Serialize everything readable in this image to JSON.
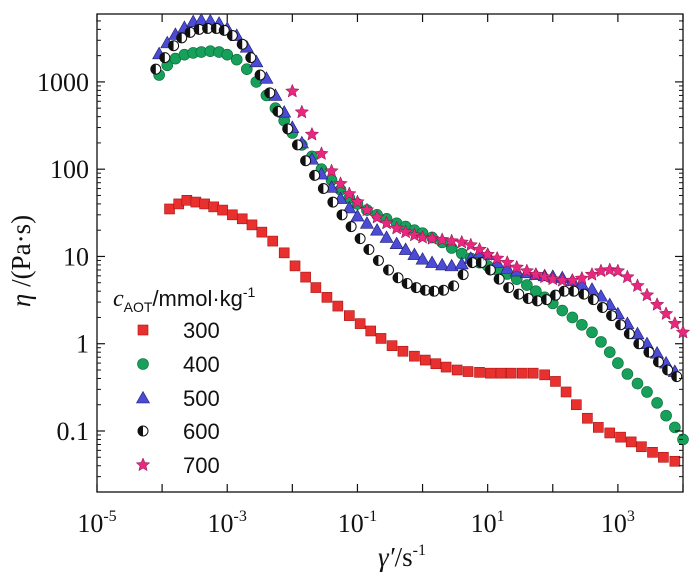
{
  "chart_data": {
    "type": "scatter",
    "xlabel": {
      "symbol": "γ′",
      "unit": "/s",
      "exp": "-1"
    },
    "ylabel": {
      "symbol": "η",
      "unit": " /(Pa·s)"
    },
    "x_scale": "log",
    "y_scale": "log",
    "xlim": [
      1e-05,
      10000
    ],
    "ylim": [
      0.02,
      6000
    ],
    "x_ticks": [
      {
        "value": 1e-05,
        "base": "10",
        "exp": "-5"
      },
      {
        "value": 0.001,
        "base": "10",
        "exp": "-3"
      },
      {
        "value": 0.1,
        "base": "10",
        "exp": "-1"
      },
      {
        "value": 10,
        "base": "10",
        "exp": "1"
      },
      {
        "value": 1000,
        "base": "10",
        "exp": "3"
      }
    ],
    "y_ticks": [
      {
        "value": 0.1,
        "label": "0.1"
      },
      {
        "value": 1,
        "label": "1"
      },
      {
        "value": 10,
        "label": "10"
      },
      {
        "value": 100,
        "label": "100"
      },
      {
        "value": 1000,
        "label": "1000"
      }
    ],
    "grid": false,
    "legend": {
      "position": "left",
      "title": {
        "symbol": "c",
        "sub": "AOT",
        "unit": "/mmol·kg",
        "exp": "-1"
      },
      "entries": [
        "300",
        "400",
        "500",
        "600",
        "700"
      ]
    },
    "series": [
      {
        "name": "300",
        "marker": "square",
        "color": "#e8302e",
        "points": [
          [
            0.00013,
            35
          ],
          [
            0.00018,
            40
          ],
          [
            0.00024,
            44
          ],
          [
            0.00033,
            42
          ],
          [
            0.00045,
            40
          ],
          [
            0.00062,
            37
          ],
          [
            0.00085,
            34
          ],
          [
            0.0012,
            30
          ],
          [
            0.0017,
            27
          ],
          [
            0.0024,
            23
          ],
          [
            0.0034,
            19
          ],
          [
            0.005,
            15
          ],
          [
            0.0075,
            11
          ],
          [
            0.011,
            7.8
          ],
          [
            0.016,
            5.8
          ],
          [
            0.023,
            4.4
          ],
          [
            0.034,
            3.4
          ],
          [
            0.05,
            2.7
          ],
          [
            0.075,
            2.1
          ],
          [
            0.11,
            1.7
          ],
          [
            0.16,
            1.4
          ],
          [
            0.23,
            1.15
          ],
          [
            0.34,
            0.95
          ],
          [
            0.5,
            0.82
          ],
          [
            0.75,
            0.72
          ],
          [
            1.1,
            0.65
          ],
          [
            1.6,
            0.59
          ],
          [
            2.3,
            0.54
          ],
          [
            3.4,
            0.5
          ],
          [
            5,
            0.48
          ],
          [
            7.5,
            0.47
          ],
          [
            11,
            0.46
          ],
          [
            16,
            0.46
          ],
          [
            23,
            0.46
          ],
          [
            34,
            0.46
          ],
          [
            50,
            0.46
          ],
          [
            75,
            0.44
          ],
          [
            110,
            0.37
          ],
          [
            160,
            0.28
          ],
          [
            230,
            0.2
          ],
          [
            340,
            0.14
          ],
          [
            500,
            0.11
          ],
          [
            750,
            0.095
          ],
          [
            1100,
            0.085
          ],
          [
            1600,
            0.075
          ],
          [
            2300,
            0.066
          ],
          [
            3400,
            0.057
          ],
          [
            5000,
            0.05
          ],
          [
            7500,
            0.045
          ],
          [
            11000,
            0.04
          ]
        ]
      },
      {
        "name": "400",
        "marker": "circle",
        "color": "#16a05a",
        "points": [
          [
            9e-05,
            1200
          ],
          [
            0.00012,
            1550
          ],
          [
            0.00016,
            1850
          ],
          [
            0.00022,
            2050
          ],
          [
            0.0003,
            2150
          ],
          [
            0.0004,
            2200
          ],
          [
            0.00055,
            2250
          ],
          [
            0.00075,
            2200
          ],
          [
            0.001,
            2050
          ],
          [
            0.0014,
            1800
          ],
          [
            0.002,
            1400
          ],
          [
            0.0028,
            1000
          ],
          [
            0.004,
            700
          ],
          [
            0.0055,
            500
          ],
          [
            0.0075,
            360
          ],
          [
            0.01,
            260
          ],
          [
            0.014,
            190
          ],
          [
            0.02,
            140
          ],
          [
            0.028,
            100
          ],
          [
            0.04,
            75
          ],
          [
            0.055,
            58
          ],
          [
            0.075,
            47
          ],
          [
            0.1,
            40
          ],
          [
            0.14,
            34
          ],
          [
            0.2,
            30
          ],
          [
            0.28,
            27
          ],
          [
            0.4,
            24
          ],
          [
            0.55,
            22
          ],
          [
            0.75,
            20
          ],
          [
            1,
            18.5
          ],
          [
            1.4,
            16.5
          ],
          [
            2,
            14.5
          ],
          [
            2.8,
            12.5
          ],
          [
            4,
            10.8
          ],
          [
            5.5,
            9.5
          ],
          [
            7.5,
            8.5
          ],
          [
            10,
            7.8
          ],
          [
            14,
            7
          ],
          [
            20,
            6.3
          ],
          [
            28,
            5.5
          ],
          [
            40,
            4.7
          ],
          [
            55,
            4
          ],
          [
            75,
            3.4
          ],
          [
            100,
            2.9
          ],
          [
            140,
            2.4
          ],
          [
            200,
            2
          ],
          [
            280,
            1.65
          ],
          [
            400,
            1.35
          ],
          [
            550,
            1.05
          ],
          [
            750,
            0.8
          ],
          [
            1000,
            0.6
          ],
          [
            1400,
            0.45
          ],
          [
            2000,
            0.35
          ],
          [
            2800,
            0.28
          ],
          [
            4000,
            0.21
          ],
          [
            5500,
            0.15
          ],
          [
            7500,
            0.11
          ],
          [
            10000,
            0.08
          ]
        ]
      },
      {
        "name": "500",
        "marker": "triangle",
        "color": "#4b4bd6",
        "points": [
          [
            9e-05,
            2100
          ],
          [
            0.00012,
            2800
          ],
          [
            0.00016,
            3500
          ],
          [
            0.00022,
            4200
          ],
          [
            0.0003,
            4900
          ],
          [
            0.0004,
            5100
          ],
          [
            0.00055,
            5000
          ],
          [
            0.00075,
            4700
          ],
          [
            0.001,
            4100
          ],
          [
            0.0014,
            3400
          ],
          [
            0.002,
            2500
          ],
          [
            0.0028,
            1700
          ],
          [
            0.004,
            1100
          ],
          [
            0.0055,
            700
          ],
          [
            0.0075,
            450
          ],
          [
            0.01,
            300
          ],
          [
            0.014,
            200
          ],
          [
            0.02,
            130
          ],
          [
            0.028,
            88
          ],
          [
            0.04,
            62
          ],
          [
            0.055,
            46
          ],
          [
            0.075,
            36
          ],
          [
            0.1,
            29
          ],
          [
            0.14,
            24
          ],
          [
            0.2,
            20
          ],
          [
            0.28,
            16.5
          ],
          [
            0.4,
            14
          ],
          [
            0.55,
            12
          ],
          [
            0.75,
            10.5
          ],
          [
            1,
            9.3
          ],
          [
            1.4,
            8.5
          ],
          [
            2,
            8
          ],
          [
            2.8,
            7.8
          ],
          [
            4,
            8.2
          ],
          [
            5.5,
            9.5
          ],
          [
            7.5,
            11
          ],
          [
            10,
            10.5
          ],
          [
            14,
            8.5
          ],
          [
            20,
            7.3
          ],
          [
            28,
            6.8
          ],
          [
            40,
            6.5
          ],
          [
            55,
            6.2
          ],
          [
            75,
            6
          ],
          [
            100,
            5.9
          ],
          [
            140,
            5.7
          ],
          [
            200,
            5.3
          ],
          [
            280,
            4.8
          ],
          [
            400,
            4.2
          ],
          [
            550,
            3.5
          ],
          [
            750,
            2.8
          ],
          [
            1000,
            2.2
          ],
          [
            1400,
            1.7
          ],
          [
            2000,
            1.3
          ],
          [
            2800,
            1
          ],
          [
            4000,
            0.78
          ],
          [
            5500,
            0.6
          ],
          [
            7500,
            0.48
          ]
        ]
      },
      {
        "name": "600",
        "marker": "halfcircle",
        "color": "#111111",
        "points": [
          [
            8e-05,
            1400
          ],
          [
            0.00011,
            1900
          ],
          [
            0.00015,
            2600
          ],
          [
            0.0002,
            3200
          ],
          [
            0.00027,
            3700
          ],
          [
            0.00037,
            4000
          ],
          [
            0.0005,
            4100
          ],
          [
            0.00068,
            4100
          ],
          [
            0.0009,
            3900
          ],
          [
            0.0012,
            3400
          ],
          [
            0.0017,
            2700
          ],
          [
            0.0023,
            1900
          ],
          [
            0.0032,
            1200
          ],
          [
            0.0045,
            750
          ],
          [
            0.006,
            460
          ],
          [
            0.0085,
            290
          ],
          [
            0.012,
            190
          ],
          [
            0.016,
            125
          ],
          [
            0.022,
            85
          ],
          [
            0.03,
            60
          ],
          [
            0.042,
            42
          ],
          [
            0.058,
            30
          ],
          [
            0.08,
            22
          ],
          [
            0.11,
            16
          ],
          [
            0.15,
            12
          ],
          [
            0.21,
            9
          ],
          [
            0.3,
            7
          ],
          [
            0.42,
            5.7
          ],
          [
            0.58,
            4.9
          ],
          [
            0.8,
            4.4
          ],
          [
            1.1,
            4.1
          ],
          [
            1.5,
            4
          ],
          [
            2.1,
            4.1
          ],
          [
            3,
            4.6
          ],
          [
            4.2,
            6.2
          ],
          [
            5.8,
            8.5
          ],
          [
            8,
            8.5
          ],
          [
            11,
            7
          ],
          [
            15,
            5.5
          ],
          [
            21,
            4.4
          ],
          [
            30,
            3.7
          ],
          [
            42,
            3.3
          ],
          [
            58,
            3.1
          ],
          [
            80,
            3.2
          ],
          [
            110,
            3.6
          ],
          [
            150,
            4
          ],
          [
            210,
            4
          ],
          [
            300,
            3.7
          ],
          [
            420,
            3.2
          ],
          [
            580,
            2.6
          ],
          [
            800,
            2.1
          ],
          [
            1100,
            1.65
          ],
          [
            1500,
            1.3
          ],
          [
            2100,
            1
          ],
          [
            3000,
            0.8
          ],
          [
            4200,
            0.62
          ],
          [
            5800,
            0.5
          ],
          [
            8000,
            0.42
          ]
        ]
      },
      {
        "name": "700",
        "marker": "star",
        "color": "#e8287e",
        "points": [
          [
            0.01,
            780
          ],
          [
            0.014,
            450
          ],
          [
            0.02,
            250
          ],
          [
            0.028,
            150
          ],
          [
            0.04,
            95
          ],
          [
            0.055,
            68
          ],
          [
            0.075,
            52
          ],
          [
            0.1,
            42
          ],
          [
            0.14,
            34
          ],
          [
            0.2,
            28
          ],
          [
            0.28,
            24
          ],
          [
            0.4,
            21
          ],
          [
            0.55,
            19
          ],
          [
            0.75,
            17.5
          ],
          [
            1,
            16.5
          ],
          [
            1.4,
            16
          ],
          [
            2,
            15.5
          ],
          [
            2.8,
            15
          ],
          [
            4,
            14.5
          ],
          [
            5.5,
            13.5
          ],
          [
            7.5,
            12
          ],
          [
            10,
            10.5
          ],
          [
            14,
            9.5
          ],
          [
            20,
            8.5
          ],
          [
            28,
            7.5
          ],
          [
            40,
            6.8
          ],
          [
            55,
            6.2
          ],
          [
            75,
            5.8
          ],
          [
            100,
            5.5
          ],
          [
            140,
            5.3
          ],
          [
            200,
            5.3
          ],
          [
            280,
            5.6
          ],
          [
            400,
            6.2
          ],
          [
            550,
            6.8
          ],
          [
            750,
            7
          ],
          [
            1000,
            6.8
          ],
          [
            1400,
            5.8
          ],
          [
            2000,
            4.6
          ],
          [
            2800,
            3.6
          ],
          [
            4000,
            2.8
          ],
          [
            5500,
            2.2
          ],
          [
            7500,
            1.7
          ],
          [
            10000,
            1.35
          ],
          [
            14000,
            1.07
          ]
        ]
      }
    ]
  }
}
